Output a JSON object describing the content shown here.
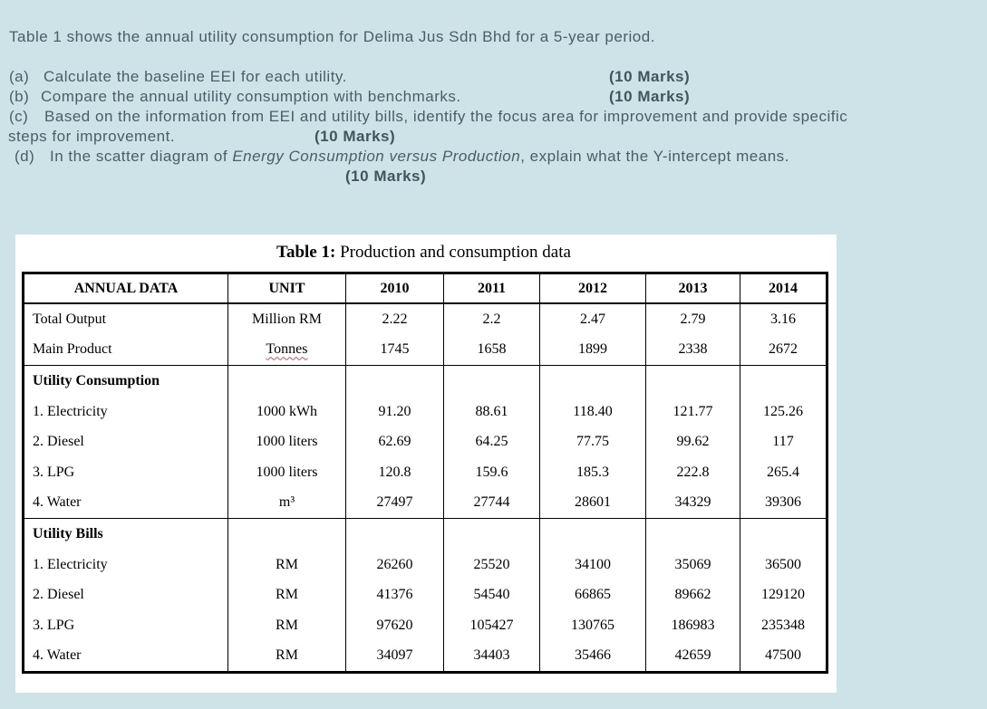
{
  "page": {
    "background_color": "#cee3e7",
    "question_text_color": "#46606a",
    "panel_color": "#ffffff"
  },
  "intro": "Table 1 shows the annual utility consumption for Delima Jus Sdn Bhd for a 5-year period.",
  "questions": {
    "a": {
      "label": "(a)",
      "text": "Calculate the baseline EEI for each utility.",
      "marks": "(10 Marks)"
    },
    "b": {
      "label": "(b)",
      "text": "Compare the annual utility consumption with benchmarks.",
      "marks": "(10 Marks)"
    },
    "c": {
      "label": "(c)",
      "line1": "Based on the information from EEI and utility bills, identify the focus area for improvement and provide specific",
      "line2": "steps for improvement.",
      "marks": "(10 Marks)"
    },
    "d": {
      "label": "(d)",
      "before_italic": "In the scatter diagram of ",
      "italic": "Energy Consumption versus Production",
      "after_italic": ", explain what the Y-intercept means.",
      "marks": "(10 Marks)"
    }
  },
  "table": {
    "title_bold": "Table 1:",
    "title_rest": " Production and consumption data",
    "headers": [
      "ANNUAL DATA",
      "UNIT",
      "2010",
      "2011",
      "2012",
      "2013",
      "2014"
    ],
    "misspelled_word": "Tonnes",
    "sections": [
      {
        "header": null,
        "rows": [
          [
            "Total Output",
            "Million RM",
            "2.22",
            "2.2",
            "2.47",
            "2.79",
            "3.16"
          ],
          [
            "Main Product",
            "Tonnes",
            "1745",
            "1658",
            "1899",
            "2338",
            "2672"
          ]
        ]
      },
      {
        "header": "Utility Consumption",
        "rows": [
          [
            "1. Electricity",
            "1000 kWh",
            "91.20",
            "88.61",
            "118.40",
            "121.77",
            "125.26"
          ],
          [
            "2. Diesel",
            "1000 liters",
            "62.69",
            "64.25",
            "77.75",
            "99.62",
            "117"
          ],
          [
            "3. LPG",
            "1000 liters",
            "120.8",
            "159.6",
            "185.3",
            "222.8",
            "265.4"
          ],
          [
            "4. Water",
            "m³",
            "27497",
            "27744",
            "28601",
            "34329",
            "39306"
          ]
        ]
      },
      {
        "header": "Utility Bills",
        "rows": [
          [
            "1. Electricity",
            "RM",
            "26260",
            "25520",
            "34100",
            "35069",
            "36500"
          ],
          [
            "2. Diesel",
            "RM",
            "41376",
            "54540",
            "66865",
            "89662",
            "129120"
          ],
          [
            "3. LPG",
            "RM",
            "97620",
            "105427",
            "130765",
            "186983",
            "235348"
          ],
          [
            "4. Water",
            "RM",
            "34097",
            "34403",
            "35466",
            "42659",
            "47500"
          ]
        ]
      }
    ]
  }
}
